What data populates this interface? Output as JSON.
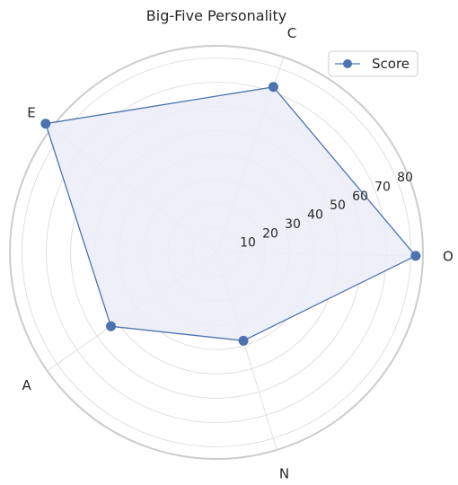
{
  "chart_data": {
    "type": "radar",
    "title": "Big-Five Personality",
    "categories": [
      "O",
      "C",
      "E",
      "A",
      "N"
    ],
    "series": [
      {
        "name": "Score",
        "values": [
          82,
          72,
          88,
          53,
          38
        ]
      }
    ],
    "rlim": [
      0,
      85
    ],
    "radial_ticks": [
      "10",
      "20",
      "30",
      "40",
      "50",
      "60",
      "70",
      "80"
    ],
    "grid": true,
    "legend": "top-right",
    "colors": {
      "line": "#4c72b0",
      "fill": "#eaedf7",
      "grid": "#d9d9d9",
      "spine": "#cccccc",
      "text": "#262626"
    }
  }
}
